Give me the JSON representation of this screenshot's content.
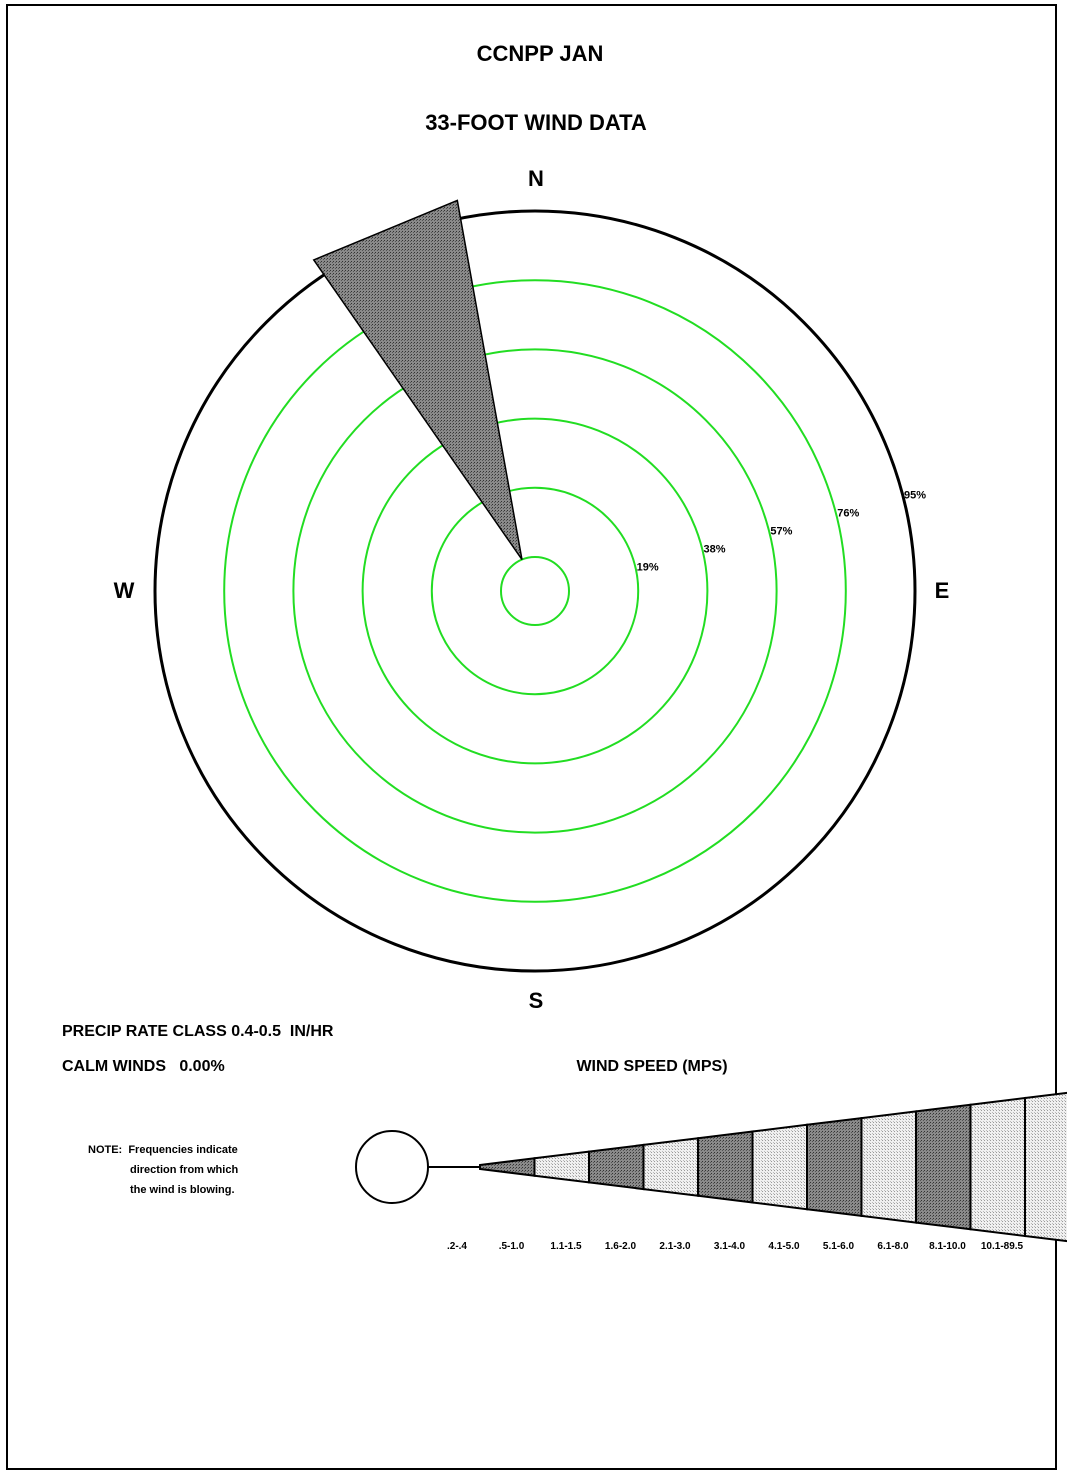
{
  "chart_data": {
    "type": "wind-rose",
    "title": "CCNPP JAN",
    "subtitle": "33-FOOT WIND DATA",
    "directions": {
      "n": "N",
      "s": "S",
      "e": "E",
      "w": "W"
    },
    "ring_labels": [
      "19%",
      "38%",
      "57%",
      "76%",
      "95%"
    ],
    "ring_values": [
      19,
      38,
      57,
      76,
      95
    ],
    "max_ring": 95,
    "petals": [
      {
        "direction": "NNW",
        "direction_deg": 337.5,
        "frequency_pct": 100,
        "speed_class": "3.1-4.0"
      }
    ],
    "precip_label": "PRECIP RATE CLASS 0.4-0.5  IN/HR",
    "calm_label": "CALM WINDS   0.00%",
    "calm_pct": 0.0,
    "legend": {
      "title": "WIND SPEED (MPS)",
      "categories": [
        ".2-.4",
        ".5-1.0",
        "1.1-1.5",
        "1.6-2.0",
        "2.1-3.0",
        "3.1-4.0",
        "4.1-5.0",
        "5.1-6.0",
        "6.1-8.0",
        "8.1-10.0",
        "10.1-89.5"
      ],
      "fills": [
        "dark",
        "light",
        "dark",
        "light",
        "dark",
        "light",
        "dark",
        "light",
        "dark",
        "light",
        "light"
      ]
    },
    "note_lines": [
      "NOTE:  Frequencies indicate",
      "direction from which",
      "the wind is blowing."
    ],
    "colors": {
      "rings": "#22dd22",
      "dark_fill": "#777777",
      "light_fill": "#e4e4e4",
      "outline": "#000000"
    }
  }
}
